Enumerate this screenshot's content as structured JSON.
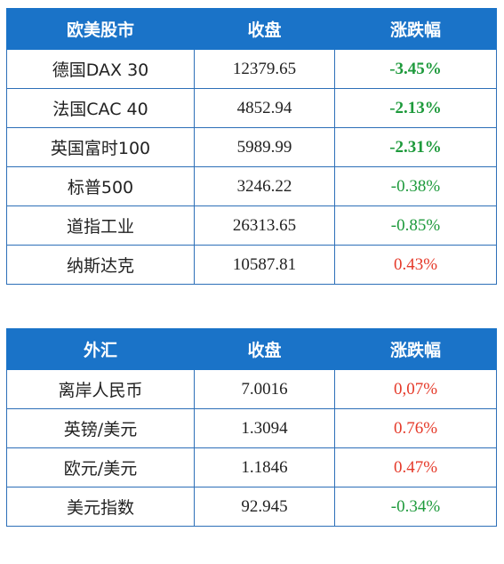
{
  "equities": {
    "headers": [
      "欧美股市",
      "收盘",
      "涨跌幅"
    ],
    "rows": [
      {
        "name": "德国DAX 30",
        "close": "12379.65",
        "change": "-3.45%"
      },
      {
        "name": "法国CAC 40",
        "close": "4852.94",
        "change": "-2.13%"
      },
      {
        "name": "英国富时100",
        "close": "5989.99",
        "change": "-2.31%"
      },
      {
        "name": "标普500",
        "close": "3246.22",
        "change": "-0.38%"
      },
      {
        "name": "道指工业",
        "close": "26313.65",
        "change": "-0.85%"
      },
      {
        "name": "纳斯达克",
        "close": "10587.81",
        "change": "0.43%"
      }
    ]
  },
  "forex": {
    "headers": [
      "外汇",
      "收盘",
      "涨跌幅"
    ],
    "rows": [
      {
        "name": "离岸人民币",
        "close": "7.0016",
        "change": "0,07%"
      },
      {
        "name": "英镑/美元",
        "close": "1.3094",
        "change": "0.76%"
      },
      {
        "name": "欧元/美元",
        "close": "1.1846",
        "change": "0.47%"
      },
      {
        "name": "美元指数",
        "close": "92.945",
        "change": "-0.34%"
      }
    ]
  },
  "colors": {
    "header_bg": "#1a73c8",
    "negative": "#1e9a3c",
    "positive": "#e53a2a"
  }
}
